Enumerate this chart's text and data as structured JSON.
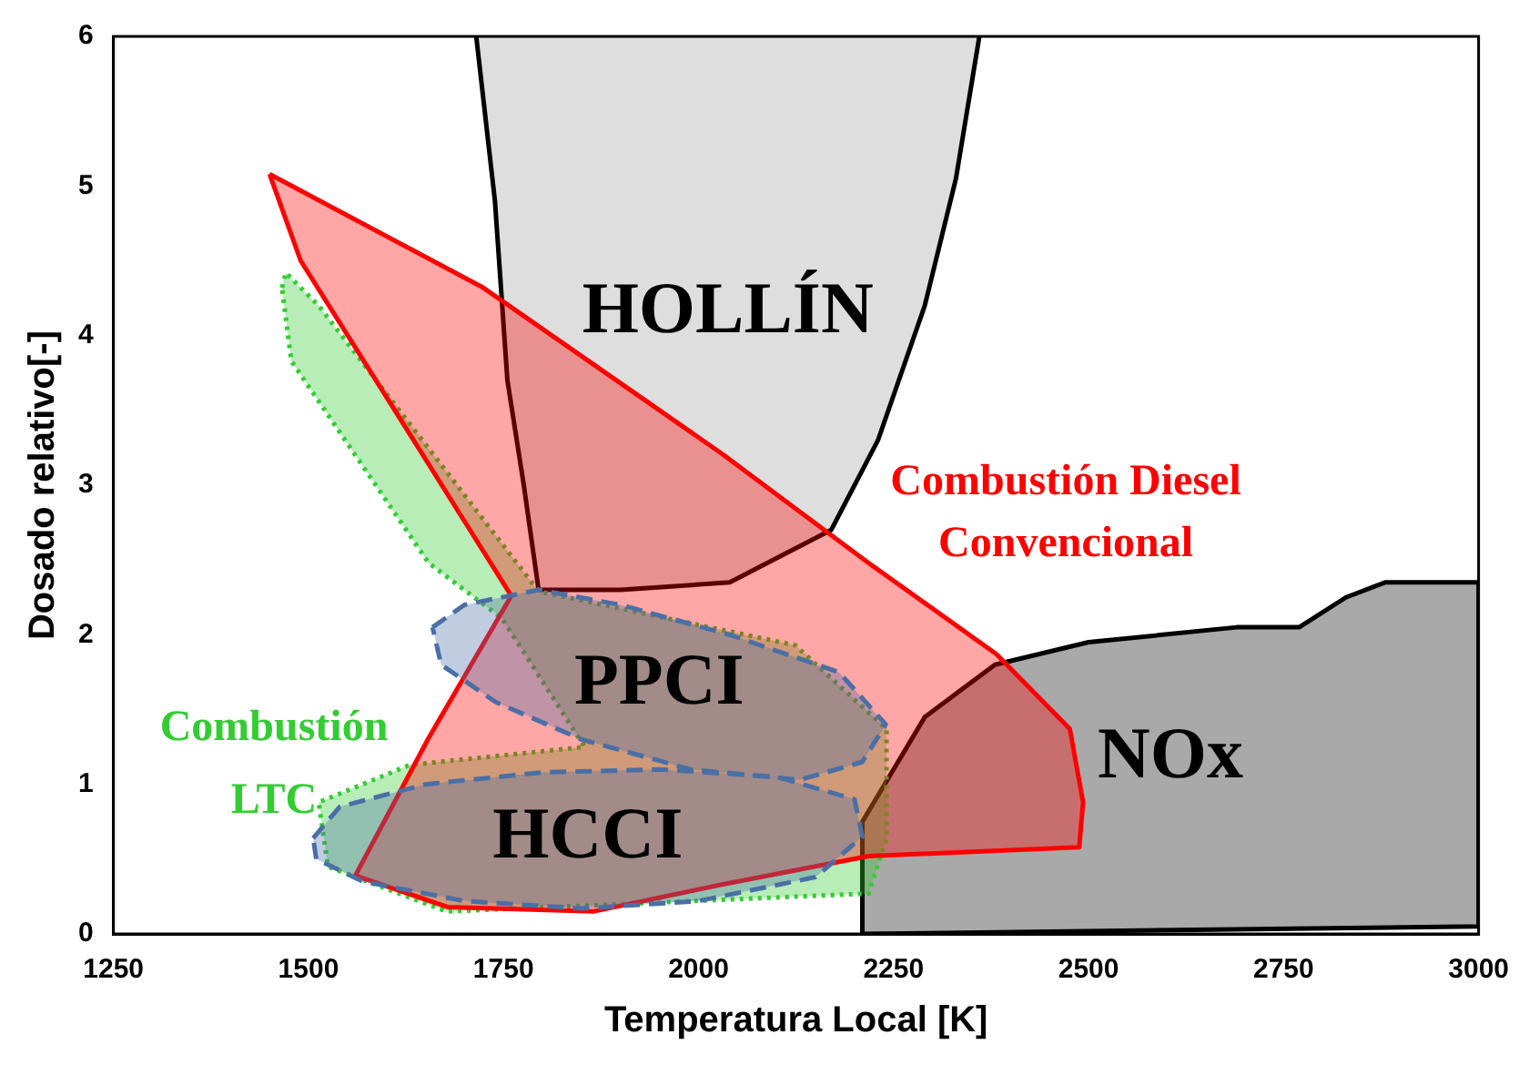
{
  "chart_data": {
    "type": "area",
    "xlabel": "Temperatura Local [K]",
    "ylabel": "Dosado relativo[-]",
    "xlim": [
      1250,
      3000
    ],
    "xticks": [
      1250,
      1500,
      1750,
      2000,
      2250,
      2500,
      2750,
      3000
    ],
    "ylim": [
      0,
      6
    ],
    "yticks": [
      0,
      1,
      2,
      3,
      4,
      5,
      6
    ],
    "grid": false,
    "legend": false,
    "marker": "none",
    "series": [
      {
        "name": "HOLLÍN",
        "color": "#000000",
        "line_style": "solid",
        "x": [
          1715,
          1739,
          1755,
          1776,
          1795,
          1900,
          2040,
          2170,
          2230,
          2290,
          2330,
          2360
        ],
        "values": [
          6,
          4.9,
          3.7,
          3.0,
          2.3,
          2.3,
          2.35,
          2.7,
          3.3,
          4.2,
          5.05,
          6
        ]
      },
      {
        "name": "NOx",
        "color": "#000000",
        "line_style": "solid",
        "x": [
          2210,
          2210,
          2290,
          2380,
          2500,
          2690,
          2770,
          2830,
          2880,
          3000,
          3000,
          2210
        ],
        "values": [
          0,
          0.75,
          1.45,
          1.8,
          1.95,
          2.05,
          2.05,
          2.25,
          2.35,
          2.35,
          0.05,
          0
        ]
      },
      {
        "color": "#33cc33",
        "line_style": "dotted",
        "x": [
          1466,
          1471,
          1513,
          1677,
          1795,
          2124,
          2241,
          2241,
          2218,
          1677,
          1525,
          1513,
          1630,
          1854,
          1748,
          1654,
          1478,
          1466
        ],
        "values": [
          4.32,
          4.42,
          4.2,
          3.09,
          2.29,
          1.93,
          1.37,
          0.64,
          0.27,
          0.15,
          0.45,
          0.88,
          1.13,
          1.25,
          2.11,
          2.48,
          3.83,
          4.32
        ]
      },
      {
        "color": "#ff0000",
        "line_style": "solid",
        "x": [
          1450,
          1724,
          2030,
          2218,
          2382,
          2476,
          2493,
          2488,
          2218,
          2030,
          1865,
          1678,
          1560,
          1654,
          1760,
          1630,
          1490,
          1450
        ],
        "values": [
          5.08,
          4.32,
          3.21,
          2.48,
          1.87,
          1.37,
          0.88,
          0.58,
          0.52,
          0.33,
          0.15,
          0.18,
          0.39,
          1.31,
          2.26,
          3.34,
          4.5,
          5.08
        ]
      },
      {
        "name": "PPCI",
        "color": "#4a6fa5",
        "line_style": "dashed",
        "x": [
          1659,
          1700,
          1795,
          1900,
          2040,
          2180,
          2240,
          2210,
          2130,
          1990,
          1850,
          1740,
          1670,
          1659
        ],
        "values": [
          2.05,
          2.2,
          2.3,
          2.2,
          2.0,
          1.75,
          1.4,
          1.15,
          1.03,
          1.1,
          1.3,
          1.55,
          1.8,
          2.05
        ]
      },
      {
        "name": "HCCI",
        "color": "#4a6fa5",
        "line_style": "dashed",
        "x": [
          1506,
          1540,
          1650,
          1800,
          1950,
          2100,
          2200,
          2210,
          2150,
          2000,
          1850,
          1700,
          1570,
          1510,
          1506
        ],
        "values": [
          0.64,
          0.85,
          1.0,
          1.08,
          1.1,
          1.05,
          0.9,
          0.65,
          0.38,
          0.22,
          0.17,
          0.22,
          0.35,
          0.5,
          0.64
        ]
      }
    ],
    "annotations": [
      {
        "text": "Combustión Diesel Convencional",
        "x": 2218,
        "y": 2.48
      },
      {
        "text": "Combustión LTC",
        "x": 1630,
        "y": 1.13
      }
    ]
  }
}
